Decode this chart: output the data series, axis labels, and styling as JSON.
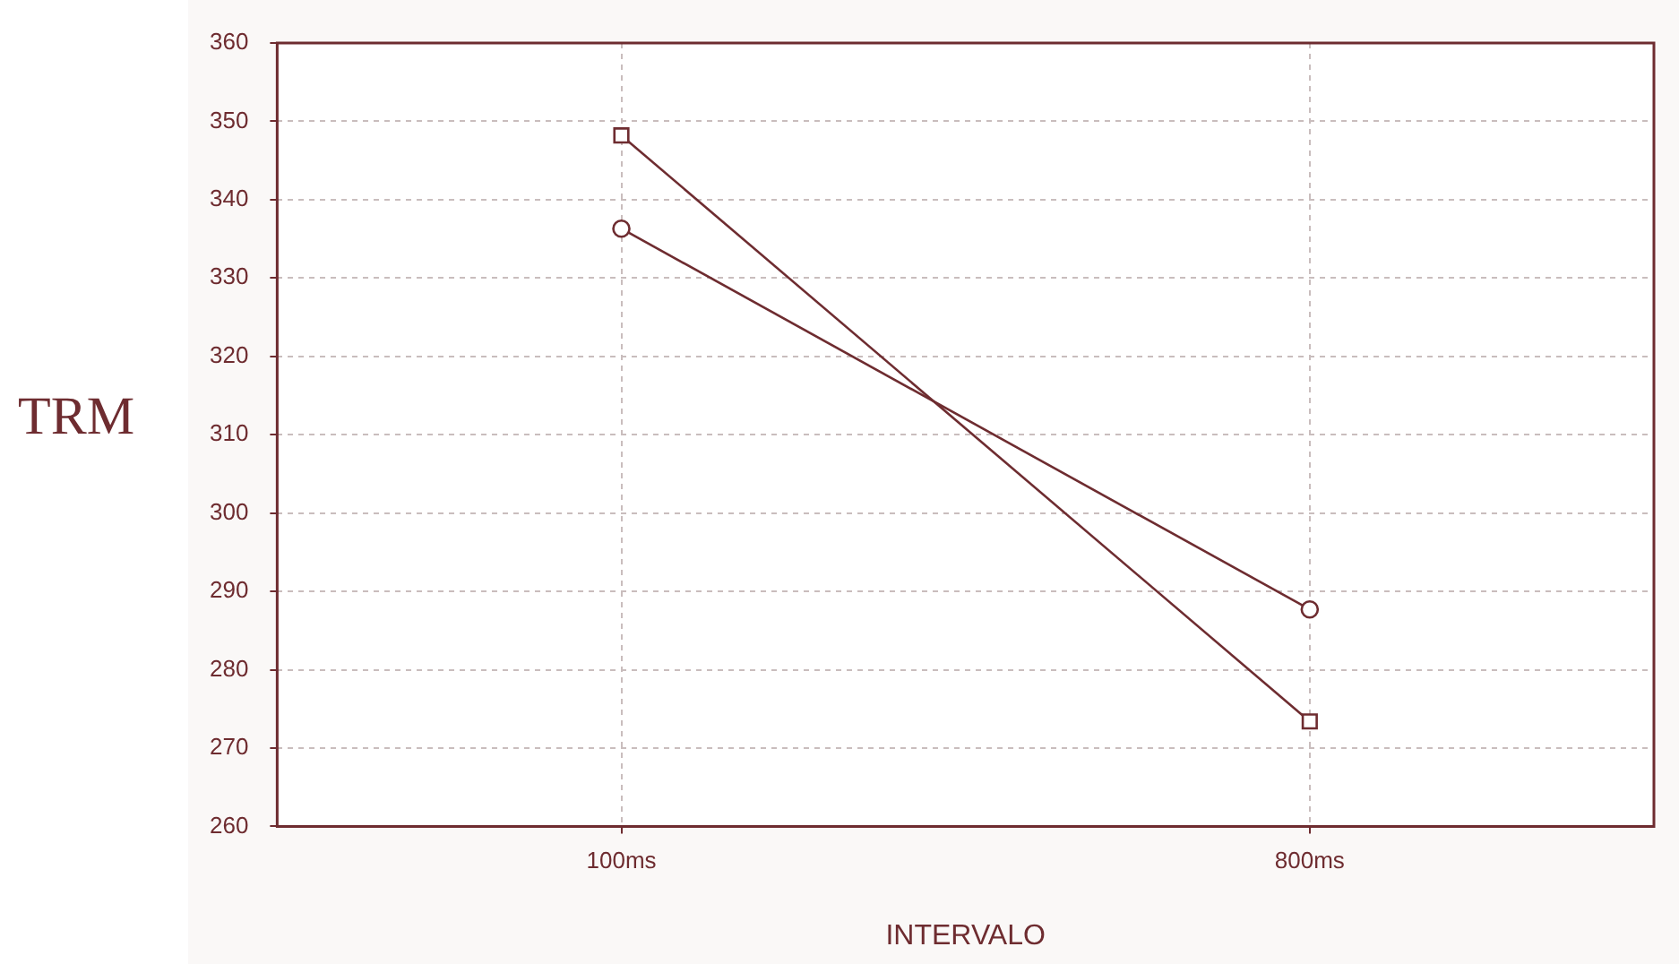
{
  "chart_data": {
    "type": "line",
    "ylabel": "TRM",
    "xlabel": "INTERVALO",
    "categories": [
      "100ms",
      "800ms"
    ],
    "series": [
      {
        "color": "#6e2c30",
        "marker": "square",
        "values": [
          348.2,
          273.4
        ]
      },
      {
        "color": "#6e2c30",
        "marker": "circle",
        "values": [
          336.3,
          287.7
        ]
      }
    ],
    "ylim": [
      260,
      360
    ],
    "yticks": [
      260,
      270,
      280,
      290,
      300,
      310,
      320,
      330,
      340,
      350,
      360
    ],
    "grid": true,
    "legend": false,
    "line_style": "solid"
  }
}
